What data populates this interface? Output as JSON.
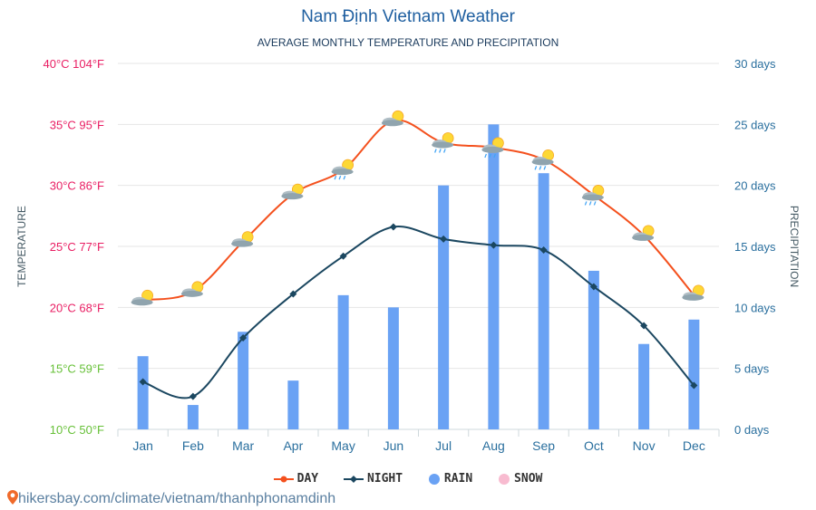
{
  "header": {
    "title": "Nam Định Vietnam Weather",
    "subtitle": "AVERAGE MONTHLY TEMPERATURE AND PRECIPITATION"
  },
  "legend": {
    "day": "DAY",
    "night": "NIGHT",
    "rain": "RAIN",
    "snow": "SNOW"
  },
  "source": {
    "text": "hikersbay.com/climate/vietnam/thanhphonamdinh"
  },
  "colors": {
    "day": "#f4511e",
    "night": "#1b4760",
    "rain": "#6aa2f4",
    "snow": "#f8bbd0",
    "left_axis_hot": "#e91e63",
    "left_axis_cool": "#66c037",
    "right_axis": "#2a6f9e"
  },
  "chart_data": {
    "type": "bar",
    "title": "Nam Định Vietnam Weather",
    "subtitle": "AVERAGE MONTHLY TEMPERATURE AND PRECIPITATION",
    "categories": [
      "Jan",
      "Feb",
      "Mar",
      "Apr",
      "May",
      "Jun",
      "Jul",
      "Aug",
      "Sep",
      "Oct",
      "Nov",
      "Dec"
    ],
    "y_left": {
      "label": "TEMPERATURE",
      "range": [
        10,
        40
      ],
      "ticks": [
        {
          "value": 40,
          "label": "40°C 104°F"
        },
        {
          "value": 35,
          "label": "35°C 95°F"
        },
        {
          "value": 30,
          "label": "30°C 86°F"
        },
        {
          "value": 25,
          "label": "25°C 77°F"
        },
        {
          "value": 20,
          "label": "20°C 68°F"
        },
        {
          "value": 15,
          "label": "15°C 59°F"
        },
        {
          "value": 10,
          "label": "10°C 50°F"
        }
      ]
    },
    "y_right": {
      "label": "PRECIPITATION",
      "range": [
        0,
        30
      ],
      "ticks": [
        {
          "value": 30,
          "label": "30 days"
        },
        {
          "value": 25,
          "label": "25 days"
        },
        {
          "value": 20,
          "label": "20 days"
        },
        {
          "value": 15,
          "label": "15 days"
        },
        {
          "value": 10,
          "label": "10 days"
        },
        {
          "value": 5,
          "label": "5 days"
        },
        {
          "value": 0,
          "label": "0 days"
        }
      ]
    },
    "grid": true,
    "legend_position": "bottom",
    "series": [
      {
        "name": "DAY",
        "type": "line",
        "axis": "left",
        "values": [
          20.6,
          21.3,
          25.4,
          29.3,
          31.3,
          35.3,
          33.5,
          33.1,
          32.1,
          29.2,
          25.9,
          21.0
        ]
      },
      {
        "name": "NIGHT",
        "type": "line",
        "axis": "left",
        "values": [
          13.9,
          12.7,
          17.5,
          21.1,
          24.2,
          26.6,
          25.6,
          25.1,
          24.7,
          21.7,
          18.5,
          13.6
        ]
      },
      {
        "name": "RAIN",
        "type": "bar",
        "axis": "right",
        "values": [
          6,
          2,
          8,
          4,
          11,
          10,
          20,
          25,
          21,
          13,
          7,
          9
        ]
      },
      {
        "name": "SNOW",
        "type": "bar",
        "axis": "right",
        "values": [
          0,
          0,
          0,
          0,
          0,
          0,
          0,
          0,
          0,
          0,
          0,
          0
        ]
      }
    ],
    "weather_icons": [
      "sun-cloud-icon",
      "sun-cloud-icon",
      "sun-cloud-icon",
      "sun-cloud-icon",
      "sun-rain-cloud-icon",
      "sun-cloud-icon",
      "sun-rain-cloud-icon",
      "sun-rain-cloud-icon",
      "sun-rain-cloud-icon",
      "sun-rain-cloud-icon",
      "sun-cloud-icon",
      "sun-cloud-icon"
    ]
  }
}
